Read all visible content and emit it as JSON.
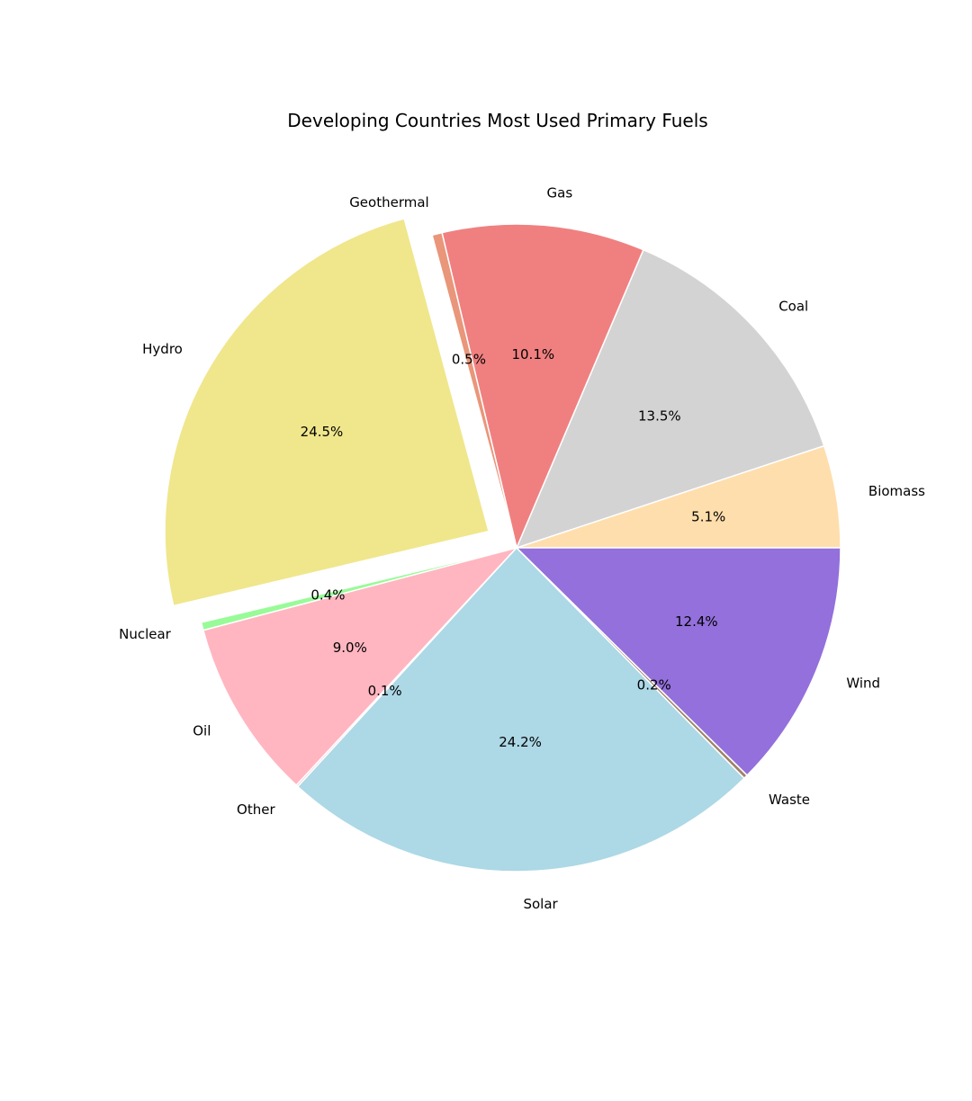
{
  "chart_data": {
    "type": "pie",
    "title": "Developing Countries Most Used Primary Fuels",
    "slices": [
      {
        "label": "Biomass",
        "value": 5.1,
        "pct_label": "5.1%",
        "color": "#FFDEAD",
        "exploded": false
      },
      {
        "label": "Coal",
        "value": 13.5,
        "pct_label": "13.5%",
        "color": "#D3D3D3",
        "exploded": false
      },
      {
        "label": "Gas",
        "value": 10.1,
        "pct_label": "10.1%",
        "color": "#F08080",
        "exploded": false
      },
      {
        "label": "Geothermal",
        "value": 0.5,
        "pct_label": "0.5%",
        "color": "#E9967A",
        "exploded": false
      },
      {
        "label": "Hydro",
        "value": 24.5,
        "pct_label": "24.5%",
        "color": "#F0E68C",
        "exploded": true
      },
      {
        "label": "Nuclear",
        "value": 0.4,
        "pct_label": "0.4%",
        "color": "#98FB98",
        "exploded": false
      },
      {
        "label": "Oil",
        "value": 9.0,
        "pct_label": "9.0%",
        "color": "#FFB6C1",
        "exploded": false
      },
      {
        "label": "Other",
        "value": 0.1,
        "pct_label": "0.1%",
        "color": "#FFC0CB",
        "exploded": false
      },
      {
        "label": "Solar",
        "value": 24.2,
        "pct_label": "24.2%",
        "color": "#ADD8E6",
        "exploded": false
      },
      {
        "label": "Waste",
        "value": 0.2,
        "pct_label": "0.2%",
        "color": "#A0826D",
        "exploded": false
      },
      {
        "label": "Wind",
        "value": 12.4,
        "pct_label": "12.4%",
        "color": "#9370DB",
        "exploded": false
      }
    ],
    "start_angle_deg": 0,
    "direction": "counterclockwise",
    "edge_color": "#ffffff"
  }
}
